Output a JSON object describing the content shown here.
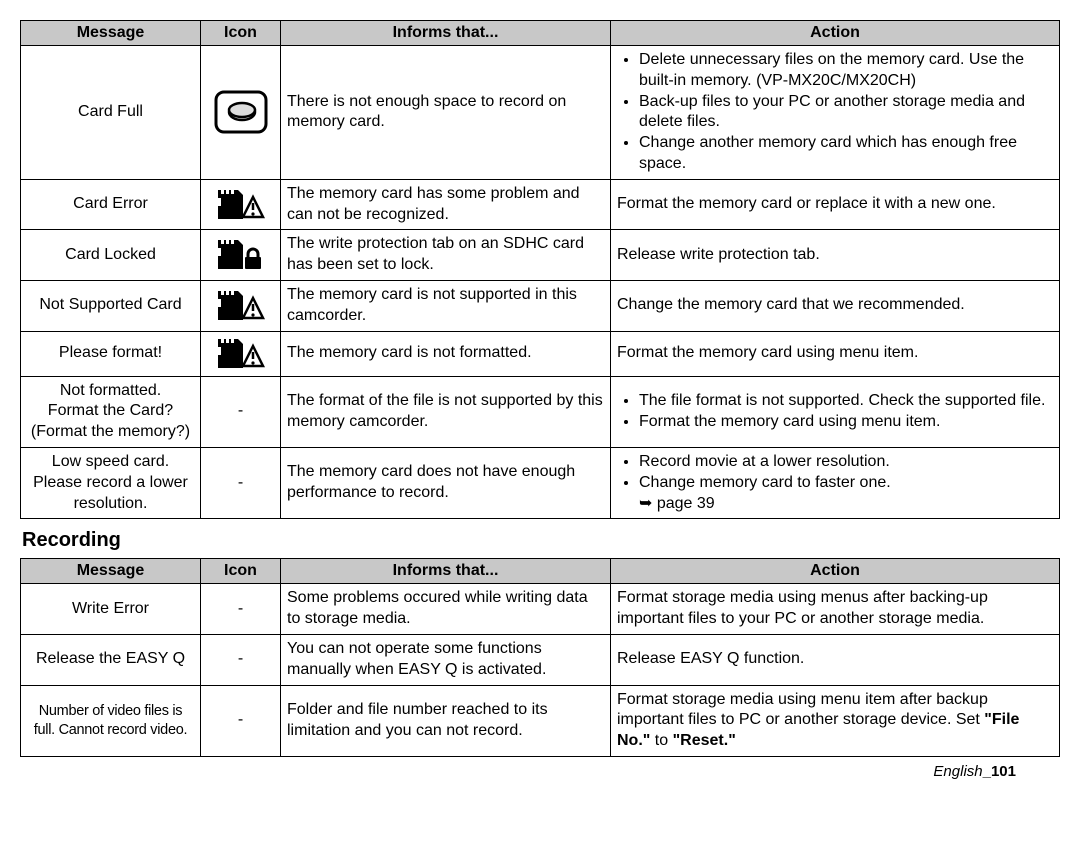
{
  "table1": {
    "headers": {
      "message": "Message",
      "icon": "Icon",
      "informs": "Informs that...",
      "action": "Action"
    },
    "rows": [
      {
        "message": "Card Full",
        "iconType": "card-full",
        "informs": "There is not enough space to record on memory card.",
        "actions": [
          "Delete unnecessary files on the memory card. Use the built-in memory. (VP-MX20C/MX20CH)",
          "Back-up files to your PC or another storage media and delete files.",
          "Change another memory card which has enough free space."
        ]
      },
      {
        "message": "Card Error",
        "iconType": "card-warn",
        "informs": "The memory card has some problem and can not be recognized.",
        "actionText": "Format the memory card or replace it with a new one."
      },
      {
        "message": "Card Locked",
        "iconType": "card-lock",
        "informs": "The write protection tab on an SDHC card has been set to lock.",
        "actionText": "Release write protection tab."
      },
      {
        "message": "Not Supported Card",
        "iconType": "card-warn",
        "informs": "The memory card is not supported in this camcorder.",
        "actionText": "Change the memory card that we recommended."
      },
      {
        "message": "Please format!",
        "iconType": "card-warn",
        "informs": "The memory card is not formatted.",
        "actionText": "Format the memory card using menu item."
      },
      {
        "message": "Not formatted.\nFormat the Card?\n(Format the memory?)",
        "iconType": "dash",
        "informs": "The format of the file is not supported by this memory camcorder.",
        "actions": [
          "The file format is not supported. Check the supported file.",
          "Format the memory card using menu item."
        ]
      },
      {
        "message": "Low speed card.\nPlease record a lower resolution.",
        "iconType": "dash",
        "informs": "The memory card does not have enough performance to record.",
        "actions": [
          "Record movie at a lower resolution.",
          "Change memory card to faster one."
        ],
        "extraRef": "➥ page 39"
      }
    ]
  },
  "sectionTitle": "Recording",
  "table2": {
    "headers": {
      "message": "Message",
      "icon": "Icon",
      "informs": "Informs that...",
      "action": "Action"
    },
    "rows": [
      {
        "message": "Write Error",
        "iconType": "dash",
        "informs": "Some problems occured while writing data to storage media.",
        "actionText": "Format storage media using menus after backing-up important files to your PC or another storage media."
      },
      {
        "message": "Release the EASY Q",
        "iconType": "dash",
        "informs": "You can not operate some functions manually when EASY Q is activated.",
        "actionText": "Release EASY Q function."
      },
      {
        "message": "Number of video files is full. Cannot record video.",
        "iconType": "dash",
        "messageCondensed": true,
        "informs": "Folder and file number reached to its limitation and you can not record.",
        "actionHtml": "Format storage media using menu item after backup important files to PC or another storage device. Set <b>\"File No.\"</b> to <b>\"Reset.\"</b>"
      }
    ]
  },
  "footer": {
    "prefix": "English",
    "page": "_101"
  }
}
